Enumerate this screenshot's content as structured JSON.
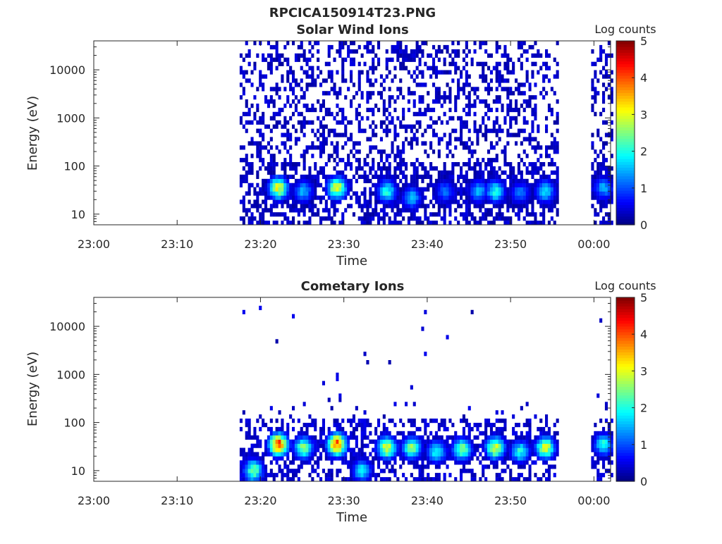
{
  "figure": {
    "filename": "RPCICA150914T23.PNG"
  },
  "colorbar": {
    "label": "Log counts",
    "ticks": [
      "0",
      "1",
      "2",
      "3",
      "4",
      "5"
    ],
    "range": [
      0,
      5
    ],
    "colormap": "jet"
  },
  "chart_data": [
    {
      "type": "heatmap",
      "title": "Solar Wind Ions",
      "xlabel": "Time",
      "ylabel": "Energy (eV)",
      "x_range": [
        "23:00",
        "00:02"
      ],
      "x_ticks": [
        "23:00",
        "23:10",
        "23:20",
        "23:30",
        "23:40",
        "23:50",
        "00:00"
      ],
      "y_scale": "log",
      "y_range": [
        6,
        40000
      ],
      "y_ticks": [
        "10",
        "100",
        "1000",
        "10000"
      ],
      "data_coverage": [
        [
          "23:17:30",
          "23:55:40"
        ],
        [
          "23:59:40",
          "00:02:00"
        ]
      ],
      "hot_spots": [
        {
          "time": "23:22",
          "energy_ev": 35,
          "log_counts": 3.0
        },
        {
          "time": "23:25",
          "energy_ev": 30,
          "log_counts": 1.5
        },
        {
          "time": "23:29",
          "energy_ev": 35,
          "log_counts": 3.0
        },
        {
          "time": "23:35",
          "energy_ev": 30,
          "log_counts": 2.0
        },
        {
          "time": "23:38",
          "energy_ev": 22,
          "log_counts": 1.5
        },
        {
          "time": "23:42",
          "energy_ev": 30,
          "log_counts": 1.2
        },
        {
          "time": "23:46",
          "energy_ev": 30,
          "log_counts": 1.5
        },
        {
          "time": "23:48",
          "energy_ev": 30,
          "log_counts": 2.0
        },
        {
          "time": "23:51",
          "energy_ev": 28,
          "log_counts": 1.2
        },
        {
          "time": "23:54",
          "energy_ev": 30,
          "log_counts": 1.8
        },
        {
          "time": "00:01",
          "energy_ev": 35,
          "log_counts": 1.5
        }
      ]
    },
    {
      "type": "heatmap",
      "title": "Cometary Ions",
      "xlabel": "Time",
      "ylabel": "Energy (eV)",
      "x_range": [
        "23:00",
        "00:02"
      ],
      "x_ticks": [
        "23:00",
        "23:10",
        "23:20",
        "23:30",
        "23:40",
        "23:50",
        "00:00"
      ],
      "y_scale": "log",
      "y_range": [
        6,
        40000
      ],
      "y_ticks": [
        "10",
        "100",
        "1000",
        "10000"
      ],
      "data_coverage": [
        [
          "23:17:30",
          "23:55:40"
        ],
        [
          "23:59:40",
          "00:02:00"
        ]
      ],
      "hot_spots": [
        {
          "time": "23:19",
          "energy_ev": 10,
          "log_counts": 2.5
        },
        {
          "time": "23:22",
          "energy_ev": 35,
          "log_counts": 4.0
        },
        {
          "time": "23:25",
          "energy_ev": 30,
          "log_counts": 2.5
        },
        {
          "time": "23:29",
          "energy_ev": 35,
          "log_counts": 4.0
        },
        {
          "time": "23:32",
          "energy_ev": 10,
          "log_counts": 1.8
        },
        {
          "time": "23:35",
          "energy_ev": 30,
          "log_counts": 3.0
        },
        {
          "time": "23:38",
          "energy_ev": 30,
          "log_counts": 2.5
        },
        {
          "time": "23:41",
          "energy_ev": 25,
          "log_counts": 2.0
        },
        {
          "time": "23:44",
          "energy_ev": 28,
          "log_counts": 2.5
        },
        {
          "time": "23:48",
          "energy_ev": 30,
          "log_counts": 3.0
        },
        {
          "time": "23:51",
          "energy_ev": 25,
          "log_counts": 2.0
        },
        {
          "time": "23:54",
          "energy_ev": 30,
          "log_counts": 3.0
        },
        {
          "time": "00:01",
          "energy_ev": 35,
          "log_counts": 2.0
        }
      ]
    }
  ]
}
